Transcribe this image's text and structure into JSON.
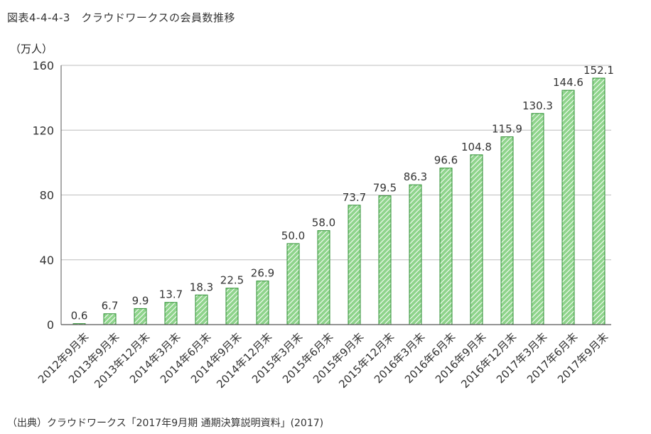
{
  "figure_title": "図表4-4-4-3　クラウドワークスの会員数推移",
  "unit_label": "（万人）",
  "source_note": "（出典）クラウドワークス「2017年9月期 通期決算説明資料」(2017)",
  "colors": {
    "bar_fill": "#8fd48c",
    "bar_stripe": "#ffffff",
    "bar_stroke": "#2f8f34",
    "grid": "#bdbdbd",
    "axis": "#555555"
  },
  "chart_data": {
    "type": "bar",
    "title": "",
    "xlabel": "",
    "ylabel": "（万人）",
    "ylim": [
      0,
      160
    ],
    "yticks": [
      0,
      40,
      80,
      120,
      160
    ],
    "ytick_labels": [
      "0",
      "40",
      "80",
      "120",
      "160"
    ],
    "grid": true,
    "categories": [
      "2012年9月末",
      "2013年9月末",
      "2013年12月末",
      "2014年3月末",
      "2014年6月末",
      "2014年9月末",
      "2014年12月末",
      "2015年3月末",
      "2015年6月末",
      "2015年9月末",
      "2015年12月末",
      "2016年3月末",
      "2016年6月末",
      "2016年9月末",
      "2016年12月末",
      "2017年3月末",
      "2017年6月末",
      "2017年9月末"
    ],
    "values": [
      0.6,
      6.7,
      9.9,
      13.7,
      18.3,
      22.5,
      26.9,
      50.0,
      58.0,
      73.7,
      79.5,
      86.3,
      96.6,
      104.8,
      115.9,
      130.3,
      144.6,
      152.1
    ],
    "value_labels": [
      "0.6",
      "6.7",
      "9.9",
      "13.7",
      "18.3",
      "22.5",
      "26.9",
      "50.0",
      "58.0",
      "73.7",
      "79.5",
      "86.3",
      "96.6",
      "104.8",
      "115.9",
      "130.3",
      "144.6",
      "152.1"
    ]
  }
}
